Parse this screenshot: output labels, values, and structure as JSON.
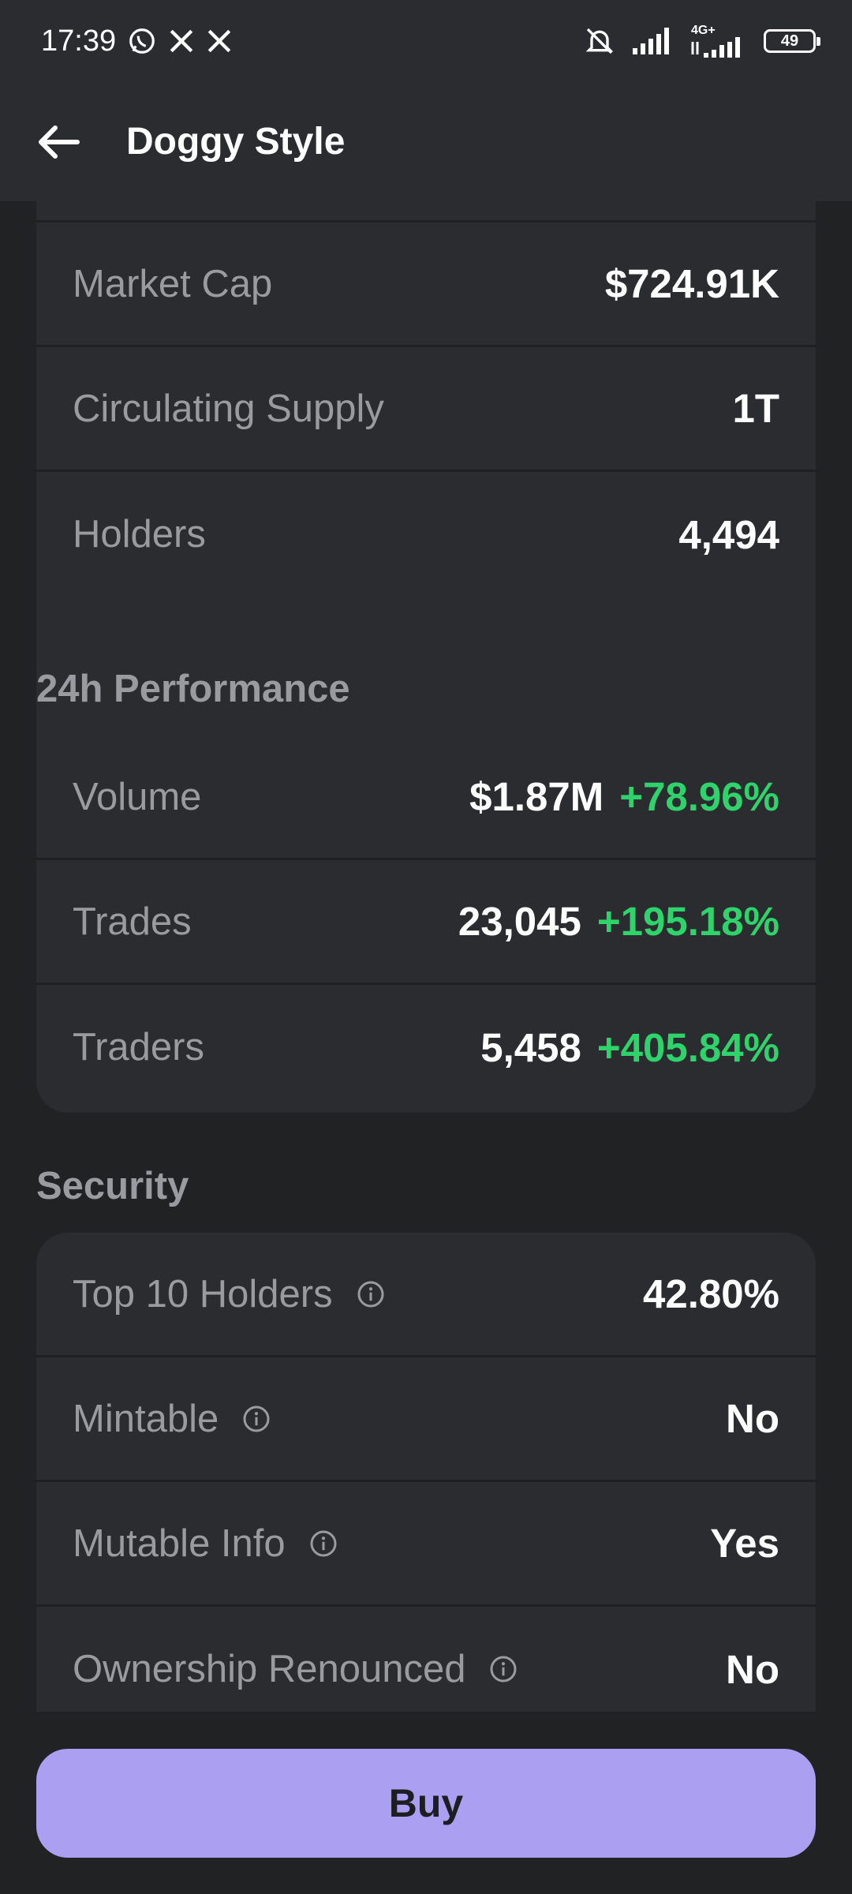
{
  "status_bar": {
    "time": "17:39",
    "net_label": "4G+",
    "battery": "49",
    "icons": [
      "whatsapp-icon",
      "x-icon",
      "x-icon",
      "bell-off-icon",
      "signal-icon",
      "signal-icon",
      "battery-icon"
    ]
  },
  "header": {
    "title": "Doggy Style"
  },
  "token_stats": [
    {
      "label": "Market Cap",
      "value": "$724.91K"
    },
    {
      "label": "Circulating Supply",
      "value": "1T"
    },
    {
      "label": "Holders",
      "value": "4,494"
    }
  ],
  "performance": {
    "title": "24h Performance",
    "rows": [
      {
        "label": "Volume",
        "value": "$1.87M",
        "change": "+78.96%"
      },
      {
        "label": "Trades",
        "value": "23,045",
        "change": "+195.18%"
      },
      {
        "label": "Traders",
        "value": "5,458",
        "change": "+405.84%"
      }
    ]
  },
  "security": {
    "title": "Security",
    "rows": [
      {
        "label": "Top 10 Holders",
        "value": "42.80%"
      },
      {
        "label": "Mintable",
        "value": "No"
      },
      {
        "label": "Mutable Info",
        "value": "Yes"
      },
      {
        "label": "Ownership Renounced",
        "value": "No"
      }
    ]
  },
  "footer": {
    "buy_label": "Buy"
  },
  "colors": {
    "accent": "#ab9ff1",
    "positive": "#2fd36b",
    "card": "#2b2c30",
    "background": "#212224"
  }
}
